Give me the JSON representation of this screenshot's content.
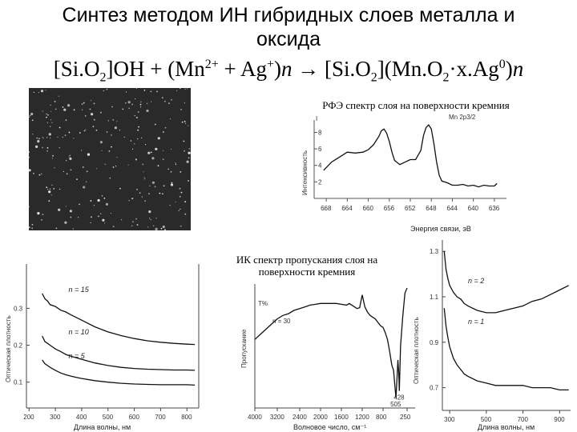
{
  "title": {
    "line1": "Синтез методом ИН гибридных слоев металла и",
    "line2": "оксида"
  },
  "formula": {
    "p1": "[Si.O",
    "s1": "2",
    "p2": "]OH + (Mn",
    "sup1": "2+",
    "p3": " + Ag",
    "sup2": "+",
    "p4": ")",
    "n1": "n",
    "p5": " → [Si.O",
    "s2": "2",
    "p6": "](Mn.O",
    "s3": "2",
    "p7": "·x.Ag",
    "sup3": "0",
    "p8": ")",
    "n2": "n"
  },
  "captions": {
    "xps": "РФЭ спектр слоя на поверхности кремния",
    "ir": "ИК спектр пропускания слоя на поверхности кремния"
  },
  "xps_chart": {
    "type": "line",
    "ylabel": "Интенсивность",
    "xlabel": "Энергия связи, эВ",
    "corner_label": "Mn 2p3/2",
    "x_ticks": [
      "668",
      "664",
      "660",
      "656",
      "652",
      "648",
      "644",
      "640",
      "636"
    ],
    "y_ticks": [
      "8",
      "6",
      "4",
      "2"
    ],
    "xlim": [
      670,
      634
    ],
    "ylim": [
      0,
      9.5
    ],
    "series": [
      {
        "x": [
          668.5,
          667,
          665.5,
          664,
          662.5,
          661,
          660,
          659,
          658,
          657.5,
          657,
          656.5,
          656,
          655.5,
          655,
          654,
          653,
          652,
          651,
          650,
          649.5,
          649,
          648.5,
          648,
          647.5,
          647,
          646.5,
          646,
          645,
          644,
          643,
          642,
          641,
          640,
          639,
          638,
          637,
          636,
          635.5
        ],
        "values": [
          3.4,
          4.4,
          5.0,
          5.6,
          5.5,
          5.6,
          5.9,
          6.5,
          7.5,
          8.2,
          8.4,
          7.9,
          6.9,
          5.6,
          4.6,
          4.1,
          4.4,
          4.7,
          4.7,
          5.8,
          7.6,
          8.6,
          8.9,
          8.4,
          6.6,
          4.4,
          2.8,
          2.1,
          1.9,
          1.6,
          1.6,
          1.7,
          1.5,
          1.6,
          1.4,
          1.6,
          1.5,
          1.5,
          1.8
        ]
      }
    ]
  },
  "uvvis_left": {
    "type": "line",
    "ylabel": "Оптическая плотность",
    "xlabel": "Длина волны, нм",
    "x_ticks": [
      "200",
      "300",
      "400",
      "500",
      "600",
      "700",
      "800"
    ],
    "y_ticks": [
      "0.3",
      "0.2",
      "0.1"
    ],
    "xlim": [
      190,
      845
    ],
    "ylim": [
      0.03,
      0.42
    ],
    "series": [
      {
        "name": "n = 15",
        "x": [
          250,
          260,
          270,
          280,
          300,
          320,
          340,
          360,
          380,
          400,
          450,
          500,
          550,
          600,
          650,
          700,
          750,
          800,
          830
        ],
        "values": [
          0.34,
          0.326,
          0.32,
          0.31,
          0.305,
          0.295,
          0.29,
          0.282,
          0.275,
          0.268,
          0.25,
          0.236,
          0.226,
          0.218,
          0.212,
          0.208,
          0.205,
          0.203,
          0.202
        ]
      },
      {
        "name": "n = 10",
        "x": [
          250,
          260,
          270,
          280,
          300,
          320,
          340,
          360,
          380,
          400,
          450,
          500,
          550,
          600,
          650,
          700,
          750,
          800,
          830
        ],
        "values": [
          0.225,
          0.21,
          0.205,
          0.2,
          0.19,
          0.183,
          0.175,
          0.17,
          0.166,
          0.162,
          0.152,
          0.145,
          0.14,
          0.137,
          0.135,
          0.134,
          0.133,
          0.133,
          0.132
        ]
      },
      {
        "name": "n = 5",
        "x": [
          250,
          260,
          270,
          280,
          300,
          320,
          340,
          360,
          380,
          400,
          450,
          500,
          550,
          600,
          650,
          700,
          750,
          800,
          830
        ],
        "values": [
          0.16,
          0.15,
          0.145,
          0.14,
          0.132,
          0.125,
          0.12,
          0.116,
          0.113,
          0.11,
          0.104,
          0.1,
          0.097,
          0.095,
          0.094,
          0.093,
          0.093,
          0.093,
          0.092
        ]
      }
    ]
  },
  "ir_chart": {
    "type": "line",
    "ylabel": "Пропускание",
    "xlabel": "Волновое число, см⁻¹",
    "percent_label": "T%",
    "series_label": "n = 30",
    "peak_labels": [
      "505",
      "428"
    ],
    "x_ticks": [
      "4000",
      "3200",
      "2400",
      "2000",
      "1600",
      "1200",
      "800",
      "250"
    ],
    "series": [
      {
        "x": [
          4000,
          3800,
          3600,
          3400,
          3200,
          3000,
          2800,
          2600,
          2400,
          2300,
          2200,
          2100,
          2000,
          1900,
          1800,
          1700,
          1600,
          1500,
          1450,
          1400,
          1350,
          1300,
          1250,
          1200,
          1150,
          1100,
          1050,
          1000,
          950,
          900,
          850,
          800,
          750,
          700,
          650,
          600,
          560,
          520,
          505,
          480,
          460,
          440,
          428,
          400,
          350,
          300,
          250
        ],
        "values": [
          0.7,
          0.73,
          0.76,
          0.79,
          0.82,
          0.84,
          0.85,
          0.87,
          0.88,
          0.89,
          0.9,
          0.905,
          0.91,
          0.91,
          0.91,
          0.91,
          0.905,
          0.9,
          0.91,
          0.9,
          0.89,
          0.88,
          0.885,
          0.96,
          0.89,
          0.86,
          0.84,
          0.83,
          0.82,
          0.8,
          0.78,
          0.77,
          0.74,
          0.7,
          0.63,
          0.55,
          0.52,
          0.4,
          0.36,
          0.48,
          0.58,
          0.5,
          0.4,
          0.66,
          0.83,
          0.97,
          1.0
        ]
      }
    ]
  },
  "uvvis_right": {
    "type": "line",
    "ylabel": "Оптическая плотность",
    "xlabel": "Длина волны, нм",
    "x_ticks": [
      "300",
      "500",
      "700",
      "900"
    ],
    "y_ticks": [
      "1.3",
      "1.1",
      "0.9",
      "0.7"
    ],
    "xlim": [
      260,
      960
    ],
    "ylim": [
      0.6,
      1.35
    ],
    "series": [
      {
        "name": "n = 2",
        "x": [
          270,
          280,
          290,
          300,
          320,
          340,
          360,
          380,
          400,
          450,
          500,
          550,
          600,
          650,
          700,
          750,
          800,
          850,
          900,
          950
        ],
        "values": [
          1.3,
          1.22,
          1.18,
          1.15,
          1.12,
          1.1,
          1.09,
          1.07,
          1.06,
          1.04,
          1.03,
          1.03,
          1.04,
          1.05,
          1.06,
          1.08,
          1.09,
          1.11,
          1.13,
          1.15
        ]
      },
      {
        "name": "n = 1",
        "x": [
          270,
          280,
          290,
          300,
          320,
          340,
          360,
          380,
          400,
          450,
          500,
          550,
          600,
          650,
          700,
          750,
          800,
          850,
          900,
          950
        ],
        "values": [
          1.05,
          0.97,
          0.92,
          0.88,
          0.83,
          0.8,
          0.78,
          0.76,
          0.75,
          0.73,
          0.72,
          0.71,
          0.71,
          0.71,
          0.71,
          0.7,
          0.7,
          0.7,
          0.69,
          0.69
        ]
      }
    ]
  }
}
